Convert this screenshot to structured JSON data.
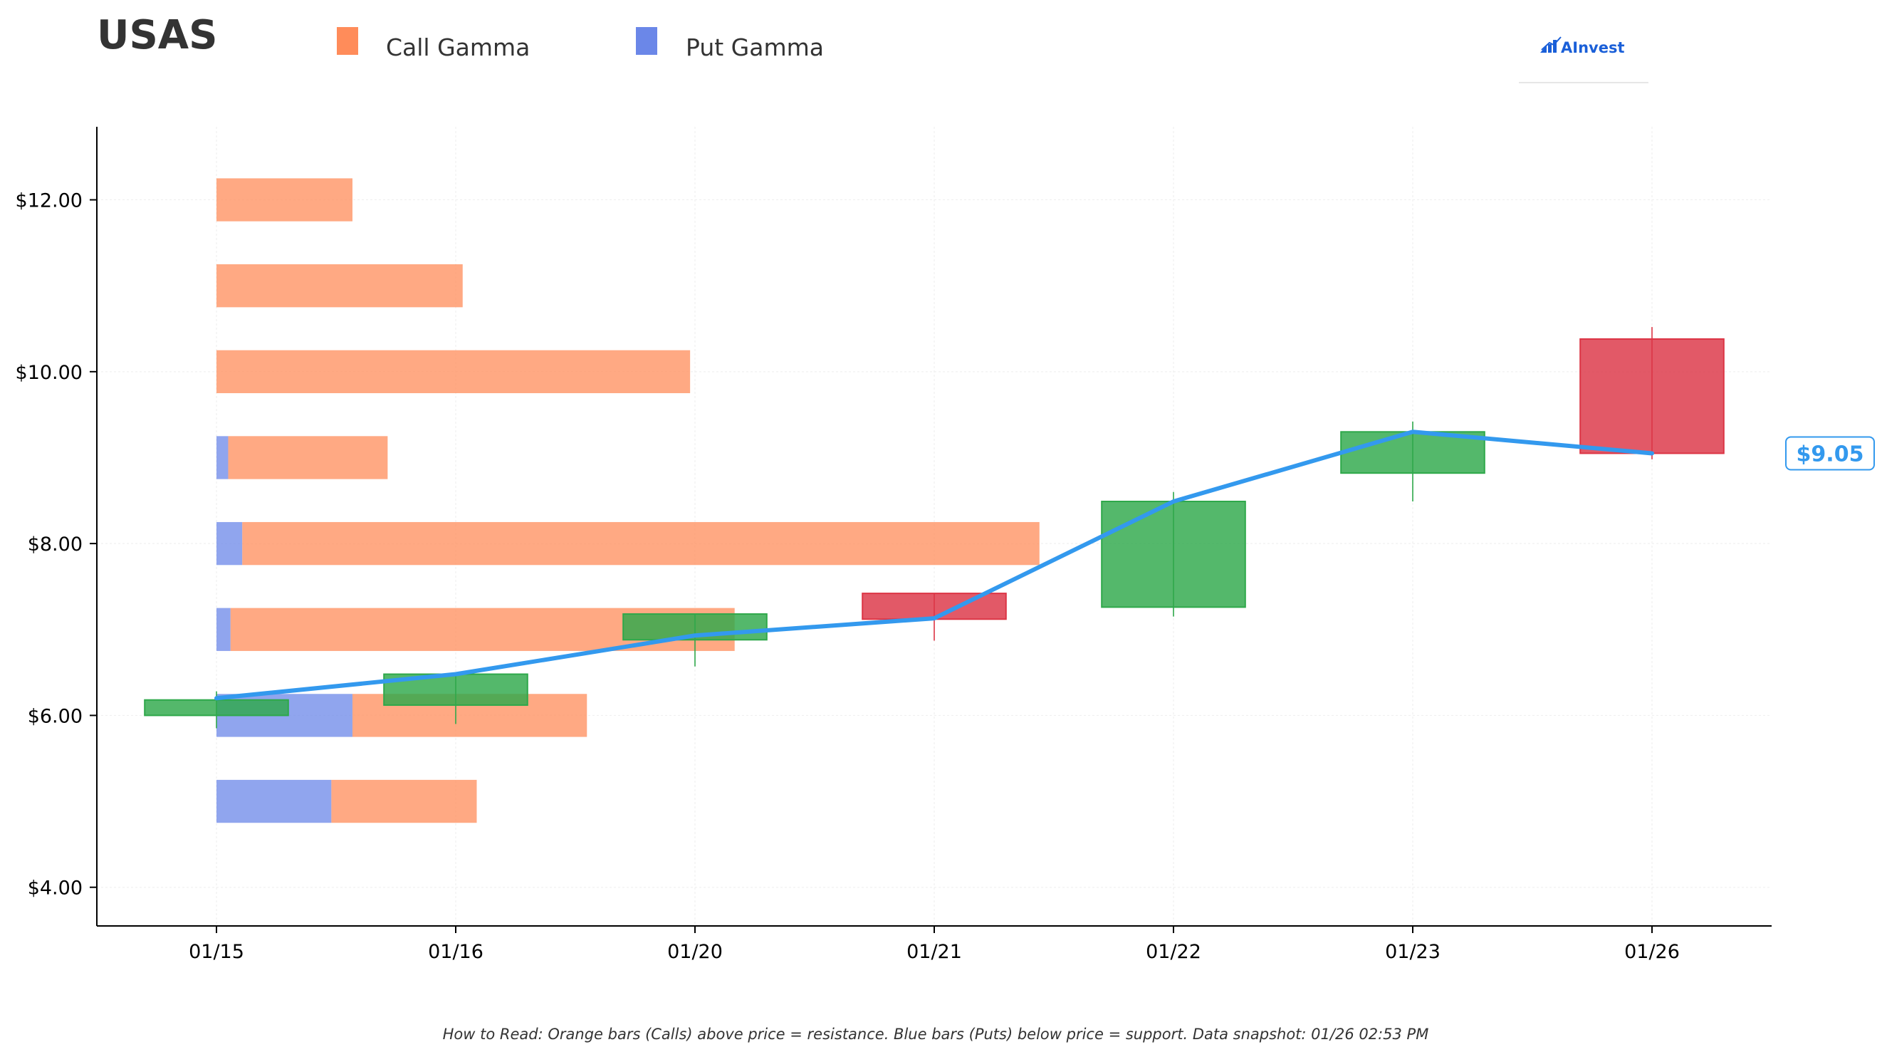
{
  "header": {
    "ticker": "USAS",
    "logo_text": "AInvest"
  },
  "legend": {
    "call_label": "Call Gamma",
    "put_label": "Put Gamma"
  },
  "footer": {
    "note": "How to Read: Orange bars (Calls) above price = resistance. Blue bars (Puts) below price = support. Data snapshot: 01/26 02:53 PM"
  },
  "colors": {
    "call": "#FF8C5A",
    "put": "#6B87E8",
    "up_candle": "#2EA84A",
    "down_candle": "#DC3545",
    "price_line": "#3399EE",
    "axis": "#000000",
    "grid": "#eeeeee"
  },
  "chart_data": {
    "type": "candlestick-with-gamma-bars",
    "x_categories": [
      "01/15",
      "01/16",
      "01/20",
      "01/21",
      "01/22",
      "01/23",
      "01/26"
    ],
    "y_ticks": [
      4,
      6,
      8,
      10,
      12
    ],
    "y_tick_labels": [
      "$4.00",
      "$6.00",
      "$8.00",
      "$10.00",
      "$12.00"
    ],
    "ylim": [
      3.55,
      12.85
    ],
    "xlim": [
      -0.5,
      6.5
    ],
    "grid": true,
    "legend_position": "top-left",
    "candles": [
      {
        "date": "01/15",
        "open": 6.0,
        "close": 6.18,
        "high": 6.28,
        "low": 5.85
      },
      {
        "date": "01/16",
        "open": 6.12,
        "close": 6.48,
        "high": 6.48,
        "low": 5.9
      },
      {
        "date": "01/20",
        "open": 6.88,
        "close": 7.18,
        "high": 7.18,
        "low": 6.57
      },
      {
        "date": "01/21",
        "open": 7.42,
        "close": 7.12,
        "high": 7.42,
        "low": 6.87
      },
      {
        "date": "01/22",
        "open": 7.26,
        "close": 8.49,
        "high": 8.6,
        "low": 7.15
      },
      {
        "date": "01/23",
        "open": 8.82,
        "close": 9.3,
        "high": 9.42,
        "low": 8.49
      },
      {
        "date": "01/26",
        "open": 10.38,
        "close": 9.05,
        "high": 10.52,
        "low": 8.98
      }
    ],
    "price_line": {
      "name": "Price",
      "values": [
        6.2,
        6.48,
        6.93,
        7.13,
        8.49,
        9.3,
        9.05
      ]
    },
    "current_price_label": "$9.05",
    "gamma_strikes": [
      5,
      6,
      7,
      8,
      9,
      10,
      11,
      12
    ],
    "put_gamma": [
      0.49,
      0.58,
      0.06,
      0.11,
      0.05,
      0.0,
      0.0,
      0.0
    ],
    "call_gamma": [
      0.62,
      1.0,
      2.15,
      3.4,
      0.68,
      2.02,
      1.05,
      0.58
    ]
  }
}
